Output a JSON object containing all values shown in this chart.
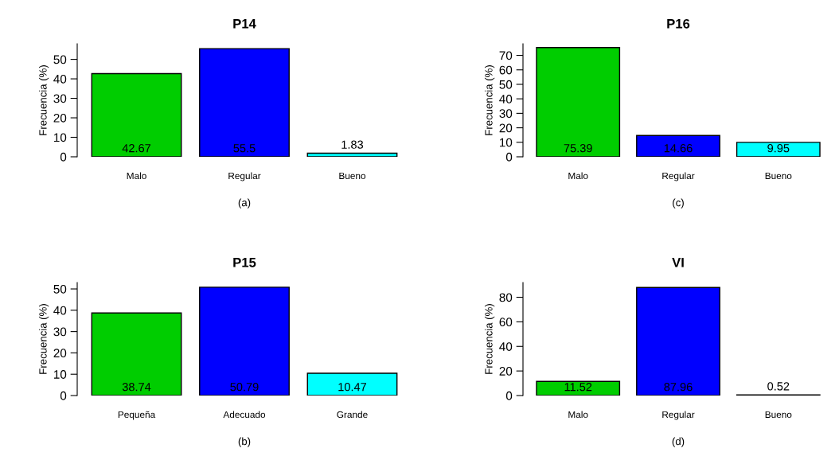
{
  "chart_data": [
    {
      "type": "bar",
      "title": "P14",
      "ylabel": "Frecuencia (%)",
      "categories": [
        "Malo",
        "Regular",
        "Bueno"
      ],
      "values": [
        42.67,
        55.5,
        1.83
      ],
      "colors": [
        "#00cd00",
        "#0000ff",
        "#00ffff"
      ],
      "ylim": [
        0,
        58
      ],
      "yticks": [
        0,
        10,
        20,
        30,
        40,
        50
      ],
      "data_labels": true,
      "grid": false,
      "legend": false,
      "annotations": [
        "(a)"
      ]
    },
    {
      "type": "bar",
      "title": "P16",
      "ylabel": "Frecuencia (%)",
      "categories": [
        "Malo",
        "Regular",
        "Bueno"
      ],
      "values": [
        75.39,
        14.66,
        9.95
      ],
      "colors": [
        "#00cd00",
        "#0000ff",
        "#00ffff"
      ],
      "ylim": [
        0,
        78
      ],
      "yticks": [
        0,
        10,
        20,
        30,
        40,
        50,
        60,
        70
      ],
      "data_labels": true,
      "grid": false,
      "legend": false,
      "annotations": [
        "(c)"
      ]
    },
    {
      "type": "bar",
      "title": "P15",
      "ylabel": "Frecuencia (%)",
      "categories": [
        "Pequeña",
        "Adecuado",
        "Grande"
      ],
      "values": [
        38.74,
        50.79,
        10.47
      ],
      "colors": [
        "#00cd00",
        "#0000ff",
        "#00ffff"
      ],
      "ylim": [
        0,
        53
      ],
      "yticks": [
        0,
        10,
        20,
        30,
        40,
        50
      ],
      "data_labels": true,
      "grid": false,
      "legend": false,
      "annotations": [
        "(b)"
      ]
    },
    {
      "type": "bar",
      "title": "VI",
      "ylabel": "Frecuencia (%)",
      "categories": [
        "Malo",
        "Regular",
        "Bueno"
      ],
      "values": [
        11.52,
        87.96,
        0.52
      ],
      "colors": [
        "#00cd00",
        "#0000ff",
        "#00ffff"
      ],
      "ylim": [
        0,
        92
      ],
      "yticks": [
        0,
        20,
        40,
        60,
        80
      ],
      "data_labels": true,
      "grid": false,
      "legend": false,
      "annotations": [
        "(d)"
      ]
    }
  ]
}
